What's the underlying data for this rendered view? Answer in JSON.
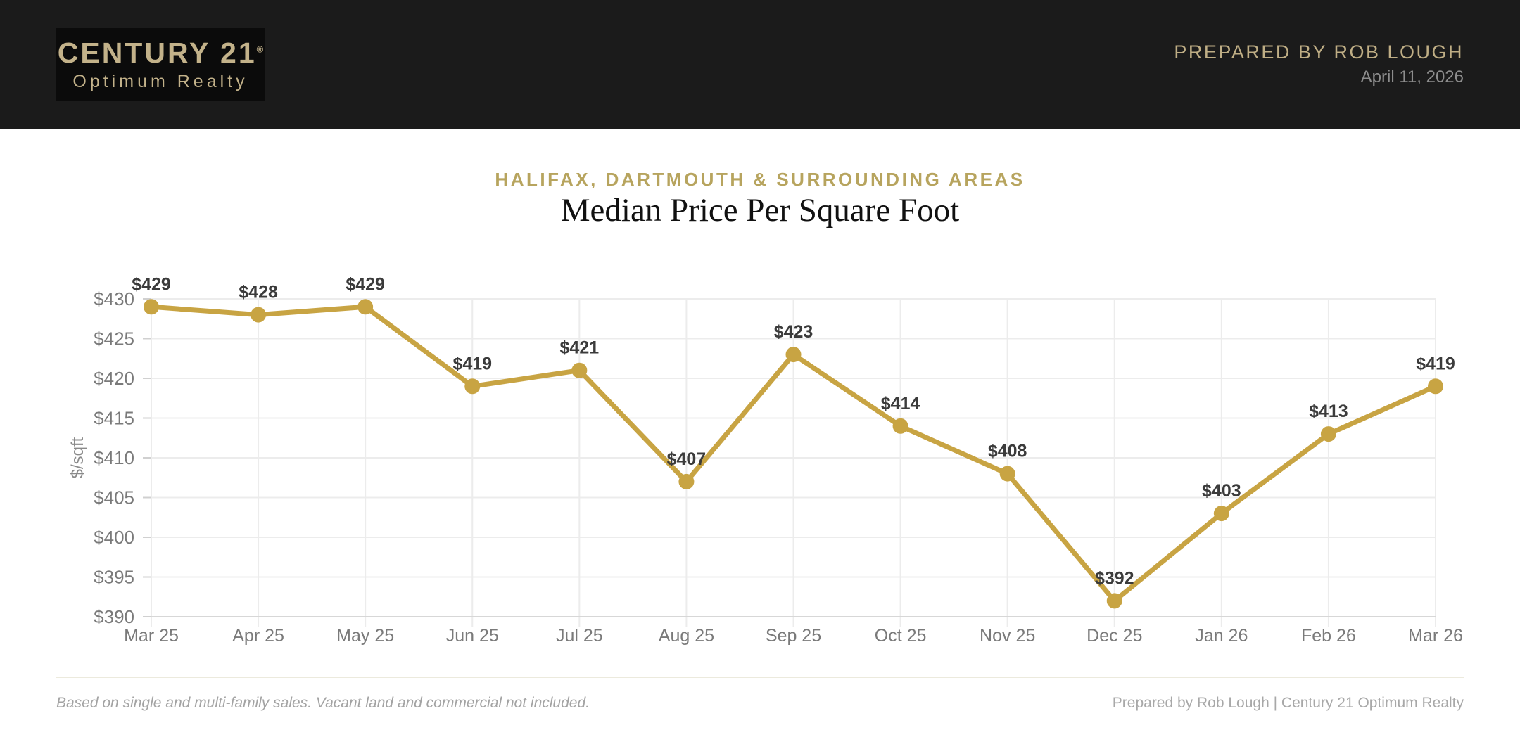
{
  "header": {
    "logo": {
      "brand": "CENTURY 21",
      "registered": "®",
      "sub": "Optimum Realty"
    },
    "prepared_by": "PREPARED BY ROB LOUGH",
    "date": "April 11, 2026"
  },
  "titles": {
    "subtitle": "HALIFAX, DARTMOUTH & SURROUNDING AREAS",
    "title": "Median Price Per Square Foot"
  },
  "footer": {
    "disclaimer": "Based on single and multi-family sales. Vacant land and commercial not included.",
    "credit": "Prepared by Rob Lough | Century 21 Optimum Realty"
  },
  "colors": {
    "header_bg": "#1b1b1b",
    "logo_box_bg": "#0b0b0b",
    "brand_gold": "#c3b28a",
    "subtitle_gold": "#b7a45e",
    "line_gold": "#c8a443",
    "data_label": "#3b3b3b",
    "axis_text": "#7a7a7a",
    "gridline": "#ececec",
    "baseline": "#d7d7d7",
    "tick": "#d0d0d0"
  },
  "chart_data": {
    "type": "line",
    "title": "Median Price Per Square Foot",
    "subtitle": "HALIFAX, DARTMOUTH & SURROUNDING AREAS",
    "categories": [
      "Mar 25",
      "Apr 25",
      "May 25",
      "Jun 25",
      "Jul 25",
      "Aug 25",
      "Sep 25",
      "Oct 25",
      "Nov 25",
      "Dec 25",
      "Jan 26",
      "Feb 26",
      "Mar 26"
    ],
    "values": [
      429,
      428,
      429,
      419,
      421,
      407,
      423,
      414,
      408,
      392,
      403,
      413,
      419
    ],
    "point_labels": [
      "$429",
      "$428",
      "$429",
      "$419",
      "$421",
      "$407",
      "$423",
      "$414",
      "$408",
      "$392",
      "$403",
      "$413",
      "$419"
    ],
    "xlabel": "",
    "ylabel": "$/sqft",
    "ylim": [
      390,
      430
    ],
    "ytick_step": 5,
    "ytick_prefix": "$",
    "ytick_labels": [
      "$390",
      "$395",
      "$400",
      "$405",
      "$410",
      "$415",
      "$420",
      "$425",
      "$430"
    ],
    "grid": true,
    "legend_position": "none",
    "line_color": "#c8a443",
    "point_color": "#c8a443"
  }
}
